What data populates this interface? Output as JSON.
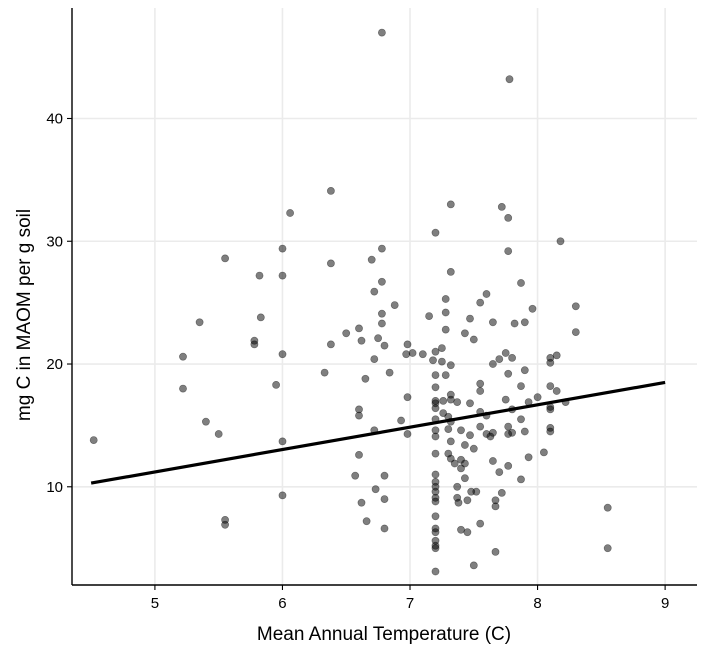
{
  "chart_data": {
    "type": "scatter",
    "title": "",
    "xlabel": "Mean Annual Temperature (C)",
    "ylabel": "mg C in MAOM per g soil",
    "xlim": [
      4.35,
      9.25
    ],
    "ylim": [
      2.0,
      49.0
    ],
    "x_ticks": [
      5,
      6,
      7,
      8,
      9
    ],
    "y_ticks": [
      10,
      20,
      30,
      40
    ],
    "x_tick_labels": [
      "5",
      "6",
      "7",
      "8",
      "9"
    ],
    "y_tick_labels": [
      "10",
      "20",
      "30",
      "40"
    ],
    "grid": true,
    "legend": "none",
    "colors": {
      "points": "#000000",
      "trend": "#000000",
      "grid": "#ebebeb"
    },
    "trend_line": {
      "x": [
        4.5,
        9.0
      ],
      "y": [
        10.3,
        18.5
      ]
    },
    "points": [
      [
        4.52,
        13.8
      ],
      [
        5.22,
        20.6
      ],
      [
        5.22,
        18.0
      ],
      [
        5.35,
        23.4
      ],
      [
        5.4,
        15.3
      ],
      [
        5.5,
        14.3
      ],
      [
        5.55,
        28.6
      ],
      [
        5.55,
        7.3
      ],
      [
        5.55,
        6.9
      ],
      [
        5.78,
        21.9
      ],
      [
        5.78,
        21.6
      ],
      [
        5.82,
        27.2
      ],
      [
        5.83,
        23.8
      ],
      [
        5.95,
        18.3
      ],
      [
        6.0,
        29.4
      ],
      [
        6.0,
        27.2
      ],
      [
        6.0,
        20.8
      ],
      [
        6.0,
        13.7
      ],
      [
        6.0,
        9.3
      ],
      [
        6.06,
        32.3
      ],
      [
        6.33,
        19.3
      ],
      [
        6.38,
        34.1
      ],
      [
        6.38,
        28.2
      ],
      [
        6.38,
        21.6
      ],
      [
        6.5,
        22.5
      ],
      [
        6.57,
        10.9
      ],
      [
        6.6,
        22.9
      ],
      [
        6.6,
        16.3
      ],
      [
        6.6,
        15.8
      ],
      [
        6.6,
        12.6
      ],
      [
        6.62,
        21.9
      ],
      [
        6.62,
        8.7
      ],
      [
        6.65,
        18.8
      ],
      [
        6.66,
        7.2
      ],
      [
        6.7,
        28.5
      ],
      [
        6.72,
        25.9
      ],
      [
        6.72,
        20.4
      ],
      [
        6.72,
        14.6
      ],
      [
        6.73,
        9.8
      ],
      [
        6.75,
        22.1
      ],
      [
        6.78,
        47.0
      ],
      [
        6.78,
        29.4
      ],
      [
        6.78,
        26.7
      ],
      [
        6.78,
        24.1
      ],
      [
        6.78,
        23.3
      ],
      [
        6.8,
        21.5
      ],
      [
        6.8,
        10.9
      ],
      [
        6.8,
        9.0
      ],
      [
        6.8,
        6.6
      ],
      [
        6.84,
        19.3
      ],
      [
        6.88,
        24.8
      ],
      [
        6.93,
        15.4
      ],
      [
        6.97,
        20.8
      ],
      [
        6.98,
        21.6
      ],
      [
        6.98,
        17.3
      ],
      [
        6.98,
        14.3
      ],
      [
        7.02,
        20.9
      ],
      [
        7.1,
        20.8
      ],
      [
        7.15,
        23.9
      ],
      [
        7.18,
        20.3
      ],
      [
        7.2,
        30.7
      ],
      [
        7.2,
        21.0
      ],
      [
        7.2,
        19.1
      ],
      [
        7.2,
        18.1
      ],
      [
        7.2,
        17.0
      ],
      [
        7.2,
        16.8
      ],
      [
        7.2,
        16.4
      ],
      [
        7.2,
        15.5
      ],
      [
        7.2,
        14.6
      ],
      [
        7.2,
        14.1
      ],
      [
        7.2,
        12.7
      ],
      [
        7.2,
        11.0
      ],
      [
        7.2,
        10.4
      ],
      [
        7.2,
        10.0
      ],
      [
        7.2,
        9.6
      ],
      [
        7.2,
        9.1
      ],
      [
        7.2,
        8.8
      ],
      [
        7.2,
        7.6
      ],
      [
        7.2,
        6.6
      ],
      [
        7.2,
        6.3
      ],
      [
        7.2,
        5.6
      ],
      [
        7.2,
        5.2
      ],
      [
        7.2,
        5.0
      ],
      [
        7.2,
        3.1
      ],
      [
        7.25,
        21.3
      ],
      [
        7.25,
        20.2
      ],
      [
        7.26,
        17.0
      ],
      [
        7.26,
        16.0
      ],
      [
        7.28,
        25.3
      ],
      [
        7.28,
        24.2
      ],
      [
        7.28,
        22.8
      ],
      [
        7.28,
        19.1
      ],
      [
        7.3,
        15.7
      ],
      [
        7.3,
        14.7
      ],
      [
        7.3,
        12.7
      ],
      [
        7.32,
        33.0
      ],
      [
        7.32,
        27.5
      ],
      [
        7.32,
        19.9
      ],
      [
        7.32,
        17.5
      ],
      [
        7.32,
        17.1
      ],
      [
        7.32,
        15.3
      ],
      [
        7.32,
        13.7
      ],
      [
        7.32,
        12.3
      ],
      [
        7.35,
        11.9
      ],
      [
        7.37,
        16.9
      ],
      [
        7.37,
        10.0
      ],
      [
        7.37,
        9.1
      ],
      [
        7.38,
        8.7
      ],
      [
        7.4,
        14.6
      ],
      [
        7.4,
        12.2
      ],
      [
        7.4,
        11.5
      ],
      [
        7.4,
        6.5
      ],
      [
        7.43,
        22.5
      ],
      [
        7.43,
        13.4
      ],
      [
        7.43,
        11.9
      ],
      [
        7.43,
        10.7
      ],
      [
        7.45,
        8.9
      ],
      [
        7.45,
        6.3
      ],
      [
        7.47,
        23.7
      ],
      [
        7.47,
        16.8
      ],
      [
        7.47,
        14.2
      ],
      [
        7.48,
        9.6
      ],
      [
        7.5,
        22.0
      ],
      [
        7.5,
        13.1
      ],
      [
        7.5,
        3.6
      ],
      [
        7.52,
        9.6
      ],
      [
        7.55,
        25.0
      ],
      [
        7.55,
        18.4
      ],
      [
        7.55,
        17.8
      ],
      [
        7.55,
        16.1
      ],
      [
        7.55,
        14.9
      ],
      [
        7.55,
        7.0
      ],
      [
        7.6,
        25.7
      ],
      [
        7.6,
        15.8
      ],
      [
        7.6,
        14.3
      ],
      [
        7.63,
        14.1
      ],
      [
        7.65,
        23.4
      ],
      [
        7.65,
        20.0
      ],
      [
        7.65,
        14.4
      ],
      [
        7.65,
        12.1
      ],
      [
        7.67,
        8.9
      ],
      [
        7.67,
        8.4
      ],
      [
        7.67,
        4.7
      ],
      [
        7.7,
        20.4
      ],
      [
        7.7,
        11.2
      ],
      [
        7.72,
        32.8
      ],
      [
        7.72,
        9.5
      ],
      [
        7.75,
        20.9
      ],
      [
        7.75,
        17.1
      ],
      [
        7.77,
        31.9
      ],
      [
        7.77,
        29.2
      ],
      [
        7.77,
        19.2
      ],
      [
        7.77,
        14.9
      ],
      [
        7.77,
        14.3
      ],
      [
        7.77,
        11.7
      ],
      [
        7.78,
        43.2
      ],
      [
        7.8,
        20.5
      ],
      [
        7.8,
        16.3
      ],
      [
        7.8,
        14.4
      ],
      [
        7.82,
        23.3
      ],
      [
        7.87,
        26.6
      ],
      [
        7.87,
        18.2
      ],
      [
        7.87,
        15.5
      ],
      [
        7.87,
        10.6
      ],
      [
        7.9,
        23.4
      ],
      [
        7.9,
        19.5
      ],
      [
        7.9,
        14.5
      ],
      [
        7.93,
        16.9
      ],
      [
        7.93,
        12.4
      ],
      [
        7.96,
        24.5
      ],
      [
        8.0,
        17.3
      ],
      [
        8.05,
        12.8
      ],
      [
        8.1,
        20.5
      ],
      [
        8.1,
        20.1
      ],
      [
        8.1,
        18.2
      ],
      [
        8.1,
        16.5
      ],
      [
        8.1,
        16.3
      ],
      [
        8.1,
        14.8
      ],
      [
        8.1,
        14.5
      ],
      [
        8.15,
        20.7
      ],
      [
        8.15,
        17.8
      ],
      [
        8.18,
        30.0
      ],
      [
        8.22,
        16.9
      ],
      [
        8.3,
        24.7
      ],
      [
        8.3,
        22.6
      ],
      [
        8.55,
        8.3
      ],
      [
        8.55,
        5.0
      ]
    ]
  }
}
